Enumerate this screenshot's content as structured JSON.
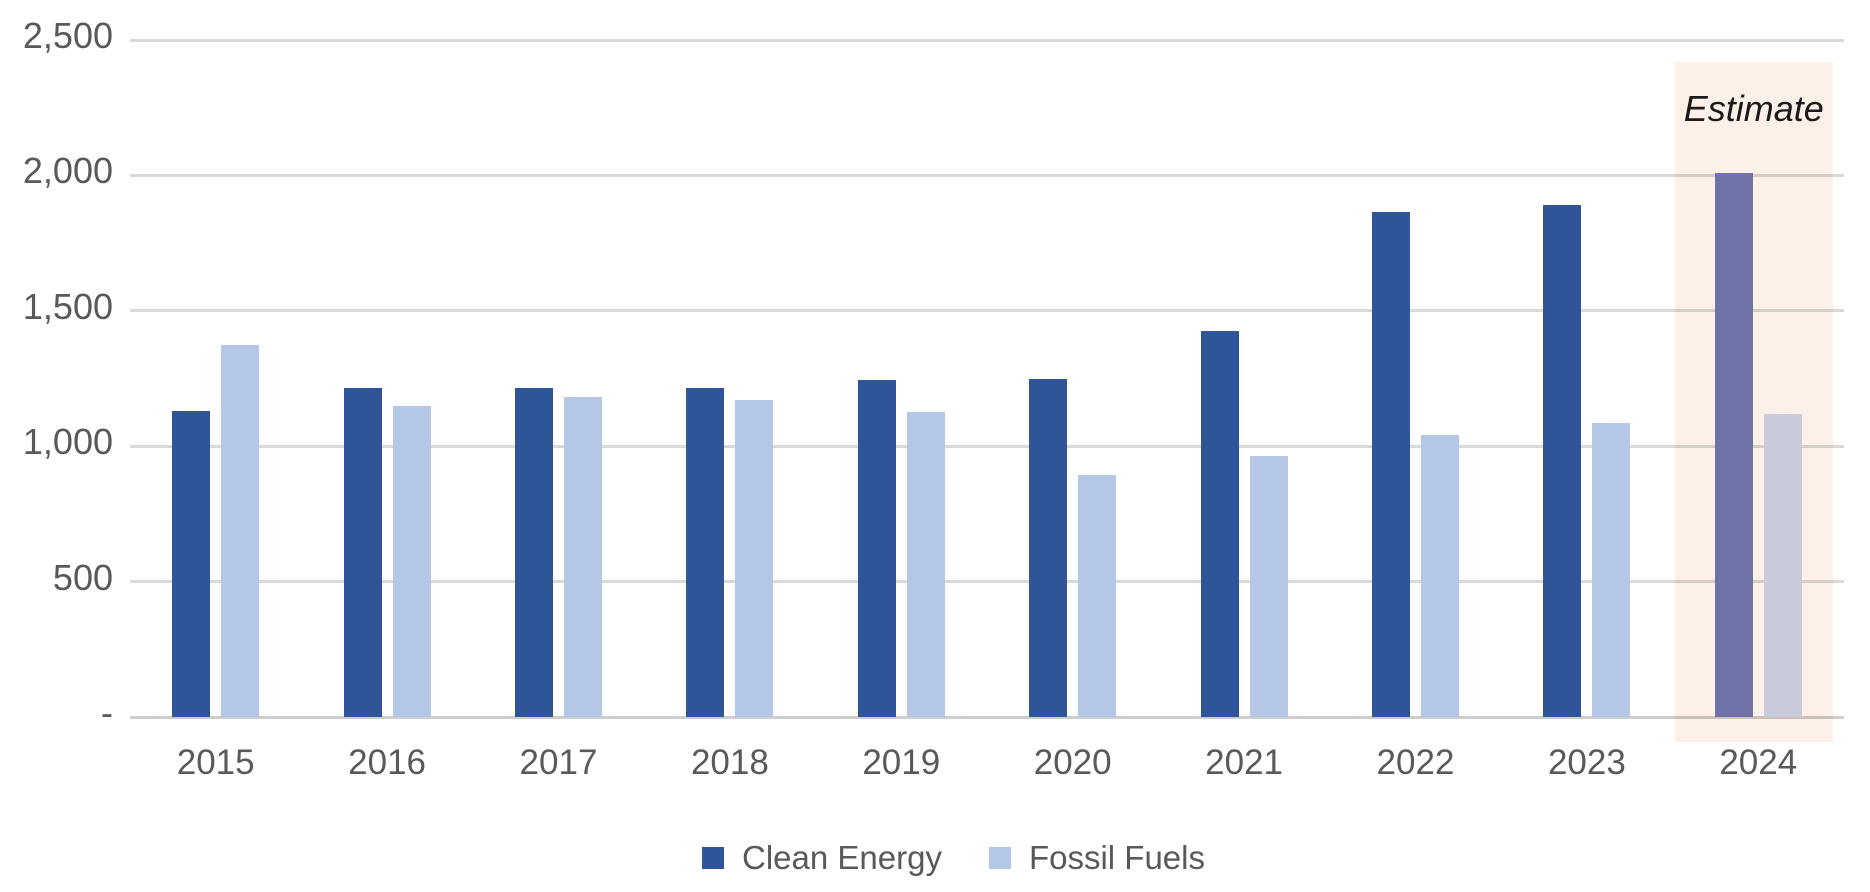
{
  "chart_data": {
    "type": "bar",
    "title": "",
    "xlabel": "",
    "ylabel": "",
    "categories": [
      "2015",
      "2016",
      "2017",
      "2018",
      "2019",
      "2020",
      "2021",
      "2022",
      "2023",
      "2024"
    ],
    "series": [
      {
        "name": "Clean Energy",
        "color": "#2E5597",
        "estimate_color": "#6F73A7",
        "values": [
          1130,
          1215,
          1215,
          1215,
          1245,
          1250,
          1425,
          1865,
          1890,
          2010
        ]
      },
      {
        "name": "Fossil Fuels",
        "color": "#B4C7E7",
        "estimate_color": "#C9CBDD",
        "values": [
          1375,
          1150,
          1180,
          1170,
          1125,
          895,
          965,
          1040,
          1085,
          1120
        ]
      }
    ],
    "ylim": [
      0,
      2500
    ],
    "yticks": [
      {
        "value": 2500,
        "label": "2,500"
      },
      {
        "value": 2000,
        "label": "2,000"
      },
      {
        "value": 1500,
        "label": "1,500"
      },
      {
        "value": 1000,
        "label": "1,000"
      },
      {
        "value": 500,
        "label": "500"
      },
      {
        "value": 0,
        "label": "-"
      }
    ],
    "grid": "horizontal",
    "legend_position": "bottom",
    "annotation": {
      "text": "Estimate",
      "category": "2024",
      "band_color": "#FCF0E9"
    }
  },
  "colors": {
    "axis_text": "#595959",
    "gridline": "#D9D9D9",
    "axis_line": "#CDCDCD",
    "annotation_text": "#1A1A1A",
    "background": "#FFFFFF"
  }
}
